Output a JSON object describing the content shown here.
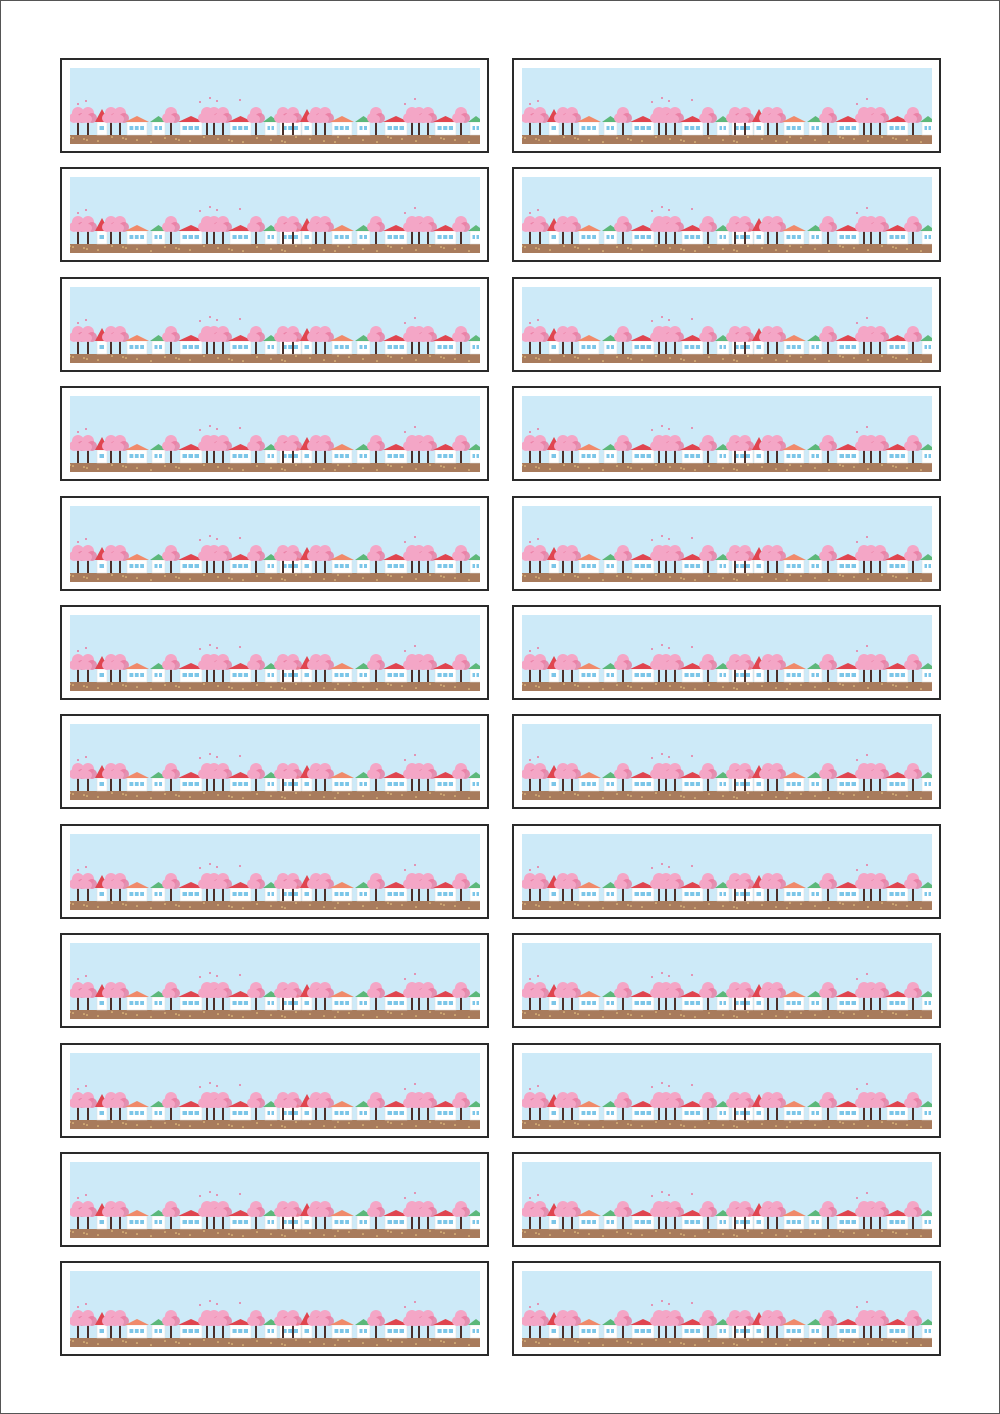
{
  "sheet": {
    "columns": 2,
    "rows": 12,
    "label_image": "spring-town-cherry-blossom-banner"
  },
  "colors": {
    "sky": "#cdeaf8",
    "ground": "#a87b5c",
    "blossom": "#f4a6c6",
    "blossom_dark": "#e9799f",
    "trunk": "#4a2f2a",
    "roof_red": "#e0454f",
    "roof_orange": "#f08a6a",
    "roof_green": "#5cb87a",
    "window": "#7cc6e8",
    "label_border": "#2a2a2a"
  }
}
